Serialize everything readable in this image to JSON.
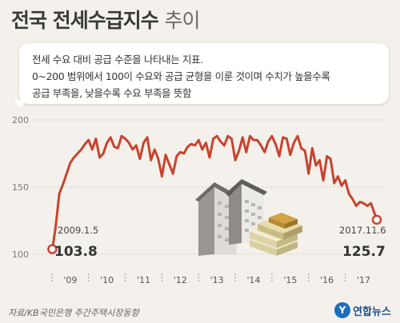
{
  "header": {
    "title_bold": "전국 전세수급지수",
    "title_light": "추이"
  },
  "note": {
    "line1": "전세 수요 대비 공급 수준을 나타내는 지표.",
    "line2": "0~200 범위에서 100이 수요와 공급 균형을 이룬 것이며 수치가 높을수록",
    "line3": "공급 부족을, 낮을수록 수요 부족을 뜻함"
  },
  "footer": {
    "source": "자료/KB국민은행 주간주택시장동향",
    "brand": "연합뉴스",
    "brand_icon": "y-logo-icon"
  },
  "colors": {
    "line": "#c8442e",
    "grid": "#c9c3ba",
    "background": "#f4f1ec"
  },
  "chart_data": {
    "type": "line",
    "title": "전국 전세수급지수 추이",
    "xlabel": "",
    "ylabel": "",
    "ylim": [
      100,
      200
    ],
    "yticks": [
      100,
      150,
      200
    ],
    "xtick_labels": [
      "'09",
      "'10",
      "'11",
      "'12",
      "'13",
      "'14",
      "'15",
      "'16",
      "'17"
    ],
    "grid": true,
    "series": [
      {
        "x": [
          2009.01,
          2009.1,
          2009.2,
          2009.3,
          2009.4,
          2009.5,
          2009.6,
          2009.7,
          2009.8,
          2009.9,
          2010.0,
          2010.1,
          2010.2,
          2010.3,
          2010.4,
          2010.5,
          2010.6,
          2010.7,
          2010.8,
          2010.9,
          2011.0,
          2011.1,
          2011.2,
          2011.3,
          2011.4,
          2011.5,
          2011.6,
          2011.7,
          2011.8,
          2011.9,
          2012.0,
          2012.1,
          2012.2,
          2012.3,
          2012.4,
          2012.5,
          2012.6,
          2012.7,
          2012.8,
          2012.9,
          2013.0,
          2013.1,
          2013.2,
          2013.3,
          2013.4,
          2013.5,
          2013.6,
          2013.7,
          2013.8,
          2013.9,
          2014.0,
          2014.1,
          2014.2,
          2014.3,
          2014.4,
          2014.5,
          2014.6,
          2014.7,
          2014.8,
          2014.9,
          2015.0,
          2015.1,
          2015.2,
          2015.3,
          2015.4,
          2015.5,
          2015.6,
          2015.7,
          2015.8,
          2015.9,
          2016.0,
          2016.1,
          2016.2,
          2016.3,
          2016.4,
          2016.5,
          2016.6,
          2016.7,
          2016.8,
          2016.9,
          2017.0,
          2017.1,
          2017.2,
          2017.3,
          2017.4,
          2017.5,
          2017.6,
          2017.7,
          2017.86
        ],
        "values": [
          103.8,
          120,
          145,
          152,
          160,
          168,
          172,
          175,
          178,
          182,
          185,
          178,
          186,
          172,
          175,
          183,
          187,
          180,
          179,
          188,
          186,
          183,
          178,
          181,
          171,
          183,
          187,
          170,
          178,
          171,
          158,
          174,
          167,
          160,
          173,
          176,
          175,
          180,
          182,
          181,
          185,
          178,
          183,
          172,
          186,
          188,
          184,
          181,
          188,
          186,
          170,
          177,
          187,
          176,
          188,
          185,
          185,
          181,
          176,
          184,
          188,
          182,
          173,
          187,
          186,
          174,
          183,
          188,
          179,
          177,
          160,
          179,
          166,
          170,
          155,
          173,
          171,
          153,
          158,
          151,
          155,
          145,
          141,
          136,
          139,
          138,
          136,
          138,
          125.7
        ]
      }
    ],
    "annotations": [
      {
        "date": "2009.1.5",
        "value": "103.8"
      },
      {
        "date": "2017.11.6",
        "value": "125.7"
      }
    ]
  }
}
